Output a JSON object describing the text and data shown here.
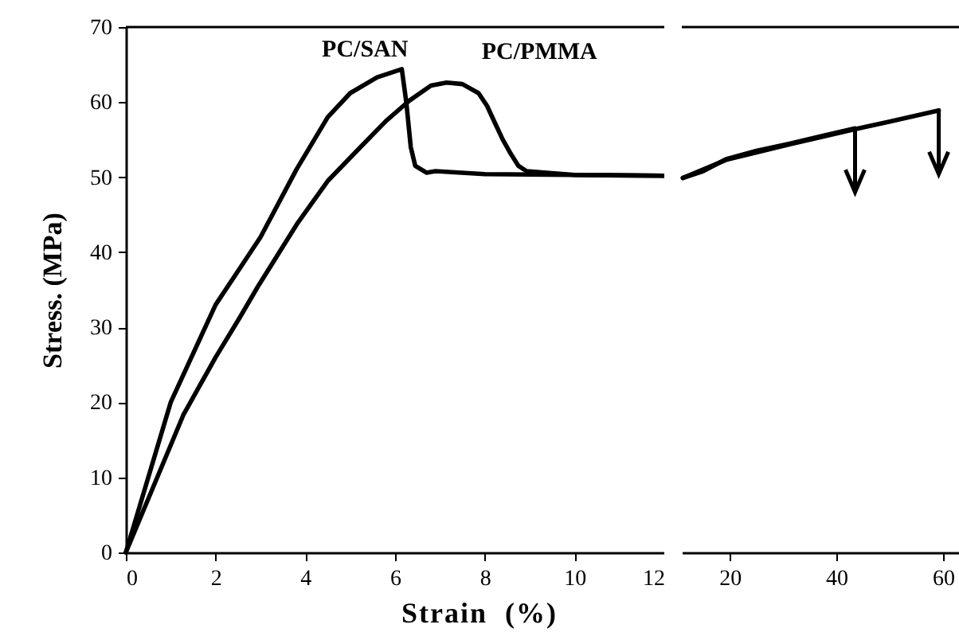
{
  "chart_data": [
    {
      "type": "line",
      "xlabel": "Strain  (%)",
      "ylabel": "Stress. (MPa)",
      "xlim": [
        0,
        12
      ],
      "xticks": [
        0,
        2,
        4,
        6,
        8,
        10,
        12
      ],
      "ylim": [
        0,
        70
      ],
      "yticks": [
        0,
        10,
        20,
        30,
        40,
        50,
        60,
        70
      ],
      "grid": false,
      "line_style": "solid",
      "series": [
        {
          "name": "PC/SAN",
          "color": "#000000",
          "x": [
            0,
            1,
            2,
            2.5,
            3,
            3.8,
            4.5,
            5,
            5.6,
            6.15,
            6.25,
            6.35,
            6.45,
            6.7,
            6.9,
            8,
            10,
            12
          ],
          "values": [
            0,
            20,
            33,
            37.5,
            42,
            51,
            58,
            61.2,
            63.3,
            64.4,
            60,
            54,
            51.5,
            50.6,
            50.8,
            50.4,
            50.3,
            50.2
          ]
        },
        {
          "name": "PC/PMMA",
          "color": "#000000",
          "x": [
            0,
            1.28,
            2,
            2.53,
            2.94,
            3.83,
            4.5,
            5.26,
            5.8,
            6.32,
            6.8,
            7.15,
            7.5,
            7.86,
            8.05,
            8.22,
            8.4,
            8.58,
            8.75,
            8.93,
            10,
            12
          ],
          "values": [
            0,
            18.3,
            26,
            31.2,
            35.4,
            43.9,
            49.5,
            54.2,
            57.5,
            60.2,
            62.2,
            62.6,
            62.4,
            61.2,
            59.5,
            57.3,
            55,
            53.1,
            51.5,
            50.8,
            50.3,
            50.2
          ]
        }
      ]
    },
    {
      "type": "line",
      "xlim": [
        11,
        63
      ],
      "xticks": [
        20,
        40,
        60
      ],
      "ylim": [
        0,
        70
      ],
      "yticks": [
        0,
        10,
        20,
        30,
        40,
        50,
        60,
        70
      ],
      "grid": false,
      "line_style": "solid",
      "tick_labels": "x",
      "series": [
        {
          "color": "#000000",
          "x": [
            11.2,
            15,
            19.3,
            25,
            31.4,
            38,
            43.5
          ],
          "values": [
            49.9,
            50.8,
            52.4,
            53.5,
            54.5,
            55.6,
            56.5
          ]
        },
        {
          "color": "#000000",
          "x": [
            11.2,
            19.3,
            31.4,
            43.5,
            50,
            59.2
          ],
          "values": [
            49.9,
            52.3,
            54.4,
            56.4,
            57.4,
            58.9
          ]
        }
      ]
    }
  ]
}
